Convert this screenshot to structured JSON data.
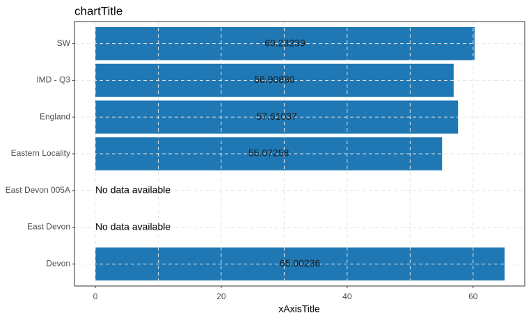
{
  "chart_data": {
    "type": "bar",
    "orientation": "horizontal",
    "title": "chartTitle",
    "x_axis_label": "xAxisTitle",
    "categories": [
      "SW",
      "IMD - Q3",
      "England",
      "Eastern Locality",
      "East Devon 005A",
      "East Devon",
      "Devon"
    ],
    "values": [
      60.23239,
      56.9088,
      57.61037,
      55.07258,
      null,
      null,
      65.00236
    ],
    "value_labels": [
      "60.23239",
      "56.90880",
      "57.61037",
      "55.07258",
      "No data available",
      "No data available",
      "65.00236"
    ],
    "color": "#1f78b4",
    "xlim": [
      -3.31,
      68.2
    ],
    "xticks": [
      0,
      20,
      40,
      60
    ],
    "minor_xticks": [
      10,
      30,
      50
    ],
    "grid": true
  }
}
